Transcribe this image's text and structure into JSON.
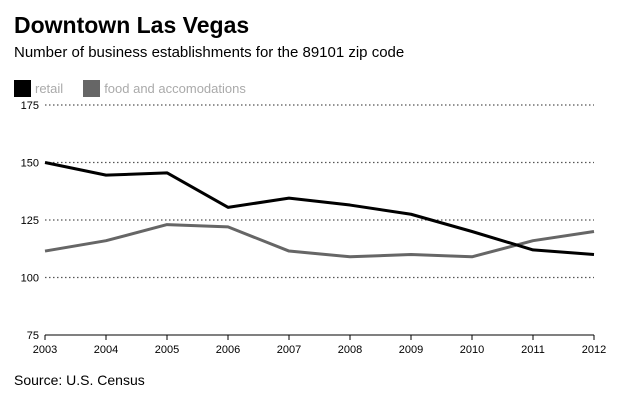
{
  "chart_data": {
    "type": "line",
    "title": "Downtown Las Vegas",
    "subtitle": "Number of business establishments for the 89101 zip code",
    "x": [
      "2003",
      "2004",
      "2005",
      "2006",
      "2007",
      "2008",
      "2009",
      "2010",
      "2011",
      "2012"
    ],
    "series": [
      {
        "name": "retail",
        "color": "#000000",
        "values": [
          150,
          144.5,
          145.5,
          130.5,
          134.5,
          131.5,
          127.5,
          120,
          112,
          110
        ]
      },
      {
        "name": "food and accomodations",
        "color": "#666666",
        "values": [
          111.5,
          116,
          123,
          122,
          111.5,
          109,
          110,
          109,
          116,
          120
        ]
      }
    ],
    "ylim": [
      75,
      175
    ],
    "yticks": [
      175,
      150,
      125,
      100,
      75
    ],
    "grid": "dotted-horizontal",
    "legend_position": "top-left",
    "xlabel": "",
    "ylabel": ""
  },
  "source": "Source: U.S. Census"
}
